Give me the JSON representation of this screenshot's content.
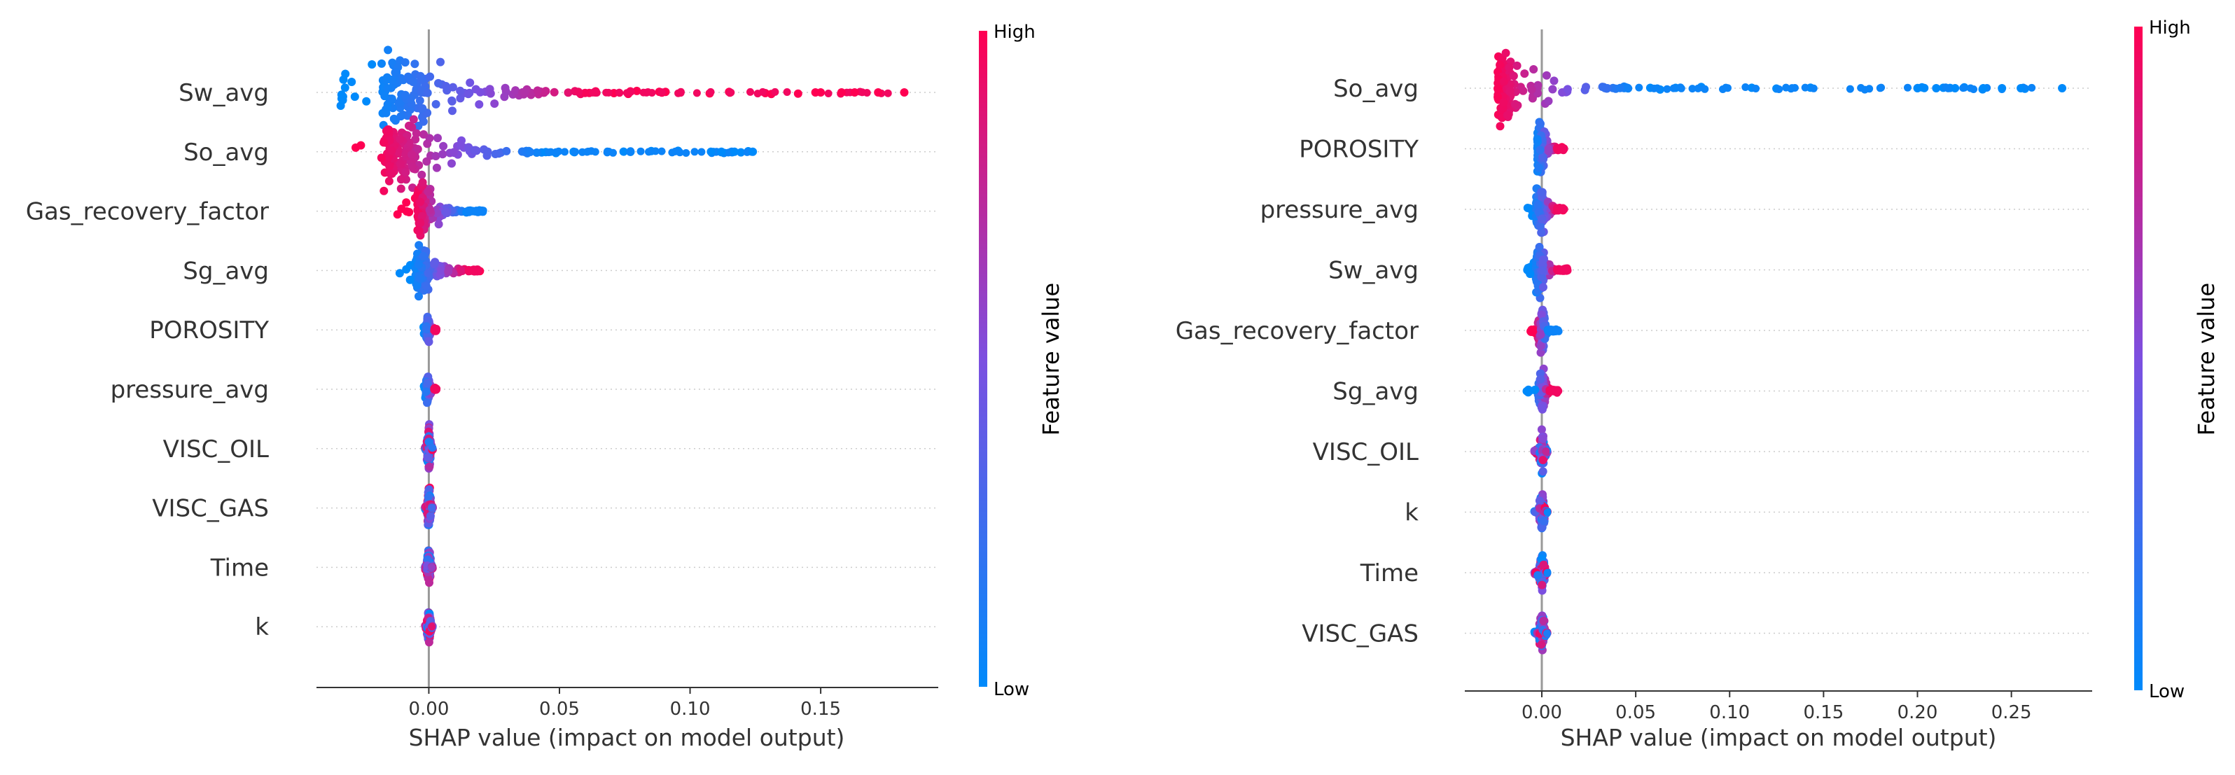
{
  "colors": {
    "low": "#008afb",
    "mid": "#7c4fe0",
    "high": "#ff0052",
    "axis": "#333333",
    "zero_line": "#999999",
    "grid": "#cccccc"
  },
  "chart_data": [
    {
      "type": "scatter",
      "subtype": "shap_beeswarm",
      "title": "",
      "xlabel": "SHAP value (impact on model output)",
      "xlim": [
        -0.043,
        0.195
      ],
      "xticks": [
        0.0,
        0.05,
        0.1,
        0.15
      ],
      "xtick_labels": [
        "0.00",
        "0.05",
        "0.10",
        "0.15"
      ],
      "colorbar": {
        "label": "Feature value",
        "high": "High",
        "low": "Low"
      },
      "features": [
        {
          "name": "Sw_avg",
          "min": -0.034,
          "q05": -0.022,
          "q50": -0.009,
          "q95": 0.062,
          "max": 0.182,
          "max_density": 70,
          "trend": "pos",
          "outliers": [
            0.148,
            0.15,
            0.158,
            0.163,
            0.172,
            0.182
          ]
        },
        {
          "name": "So_avg",
          "min": -0.028,
          "q05": -0.02,
          "q50": -0.011,
          "q95": 0.045,
          "max": 0.124,
          "max_density": 70,
          "trend": "neg",
          "outliers": [
            0.108,
            0.112,
            0.117,
            0.124
          ]
        },
        {
          "name": "Gas_recovery_factor",
          "min": -0.012,
          "q05": -0.005,
          "q50": -0.003,
          "q95": 0.015,
          "max": 0.021,
          "max_density": 48,
          "trend": "neg",
          "outliers": []
        },
        {
          "name": "Sg_avg",
          "min": -0.012,
          "q05": -0.006,
          "q50": -0.003,
          "q95": 0.015,
          "max": 0.02,
          "max_density": 48,
          "trend": "pos",
          "outliers": []
        },
        {
          "name": "POROSITY",
          "min": -0.002,
          "q05": -0.0015,
          "q50": -0.0005,
          "q95": 0.002,
          "max": 0.003,
          "max_density": 22,
          "trend": "pos",
          "outliers": []
        },
        {
          "name": "pressure_avg",
          "min": -0.002,
          "q05": -0.0015,
          "q50": -0.0005,
          "q95": 0.002,
          "max": 0.003,
          "max_density": 22,
          "trend": "pos",
          "outliers": []
        },
        {
          "name": "VISC_OIL",
          "min": -0.0015,
          "q05": -0.001,
          "q50": 0.0,
          "q95": 0.001,
          "max": 0.0015,
          "max_density": 40,
          "trend": "mixed",
          "outliers": []
        },
        {
          "name": "VISC_GAS",
          "min": -0.0015,
          "q05": -0.001,
          "q50": 0.0,
          "q95": 0.001,
          "max": 0.0015,
          "max_density": 40,
          "trend": "mixed",
          "outliers": []
        },
        {
          "name": "Time",
          "min": -0.0015,
          "q05": -0.001,
          "q50": 0.0,
          "q95": 0.001,
          "max": 0.0015,
          "max_density": 36,
          "trend": "mixed",
          "outliers": []
        },
        {
          "name": "k",
          "min": -0.0015,
          "q05": -0.001,
          "q50": 0.0,
          "q95": 0.001,
          "max": 0.0015,
          "max_density": 36,
          "trend": "mixed",
          "outliers": []
        }
      ]
    },
    {
      "type": "scatter",
      "subtype": "shap_beeswarm",
      "title": "",
      "xlabel": "SHAP value (impact on model output)",
      "xlim": [
        -0.041,
        0.293
      ],
      "xticks": [
        0.0,
        0.05,
        0.1,
        0.15,
        0.2,
        0.25
      ],
      "xtick_labels": [
        "0.00",
        "0.05",
        "0.10",
        "0.15",
        "0.20",
        "0.25"
      ],
      "colorbar": {
        "label": "Feature value",
        "high": "High",
        "low": "Low"
      },
      "features": [
        {
          "name": "So_avg",
          "min": -0.027,
          "q05": -0.025,
          "q50": -0.02,
          "q95": 0.05,
          "max": 0.277,
          "max_density": 70,
          "trend": "neg",
          "outliers": [
            0.2,
            0.21,
            0.22,
            0.235,
            0.245,
            0.255,
            0.277
          ]
        },
        {
          "name": "POROSITY",
          "min": -0.004,
          "q05": -0.003,
          "q50": -0.001,
          "q95": 0.008,
          "max": 0.012,
          "max_density": 46,
          "trend": "pos",
          "outliers": []
        },
        {
          "name": "pressure_avg",
          "min": -0.008,
          "q05": -0.004,
          "q50": -0.001,
          "q95": 0.008,
          "max": 0.012,
          "max_density": 46,
          "trend": "pos",
          "outliers": []
        },
        {
          "name": "Sw_avg",
          "min": -0.008,
          "q05": -0.004,
          "q50": -0.001,
          "q95": 0.008,
          "max": 0.014,
          "max_density": 46,
          "trend": "pos",
          "outliers": []
        },
        {
          "name": "Gas_recovery_factor",
          "min": -0.006,
          "q05": -0.003,
          "q50": 0.0,
          "q95": 0.003,
          "max": 0.009,
          "max_density": 44,
          "trend": "neg",
          "outliers": []
        },
        {
          "name": "Sg_avg",
          "min": -0.008,
          "q05": -0.003,
          "q50": 0.0,
          "q95": 0.004,
          "max": 0.009,
          "max_density": 40,
          "trend": "pos",
          "outliers": []
        },
        {
          "name": "VISC_OIL",
          "min": -0.004,
          "q05": -0.002,
          "q50": 0.0,
          "q95": 0.002,
          "max": 0.003,
          "max_density": 36,
          "trend": "mixed",
          "outliers": []
        },
        {
          "name": "k",
          "min": -0.004,
          "q05": -0.002,
          "q50": 0.0,
          "q95": 0.002,
          "max": 0.003,
          "max_density": 36,
          "trend": "mixed",
          "outliers": []
        },
        {
          "name": "Time",
          "min": -0.004,
          "q05": -0.002,
          "q50": 0.0,
          "q95": 0.002,
          "max": 0.003,
          "max_density": 36,
          "trend": "mixed",
          "outliers": []
        },
        {
          "name": "VISC_GAS",
          "min": -0.004,
          "q05": -0.002,
          "q50": 0.0,
          "q95": 0.002,
          "max": 0.003,
          "max_density": 36,
          "trend": "mixed",
          "outliers": []
        }
      ]
    }
  ]
}
